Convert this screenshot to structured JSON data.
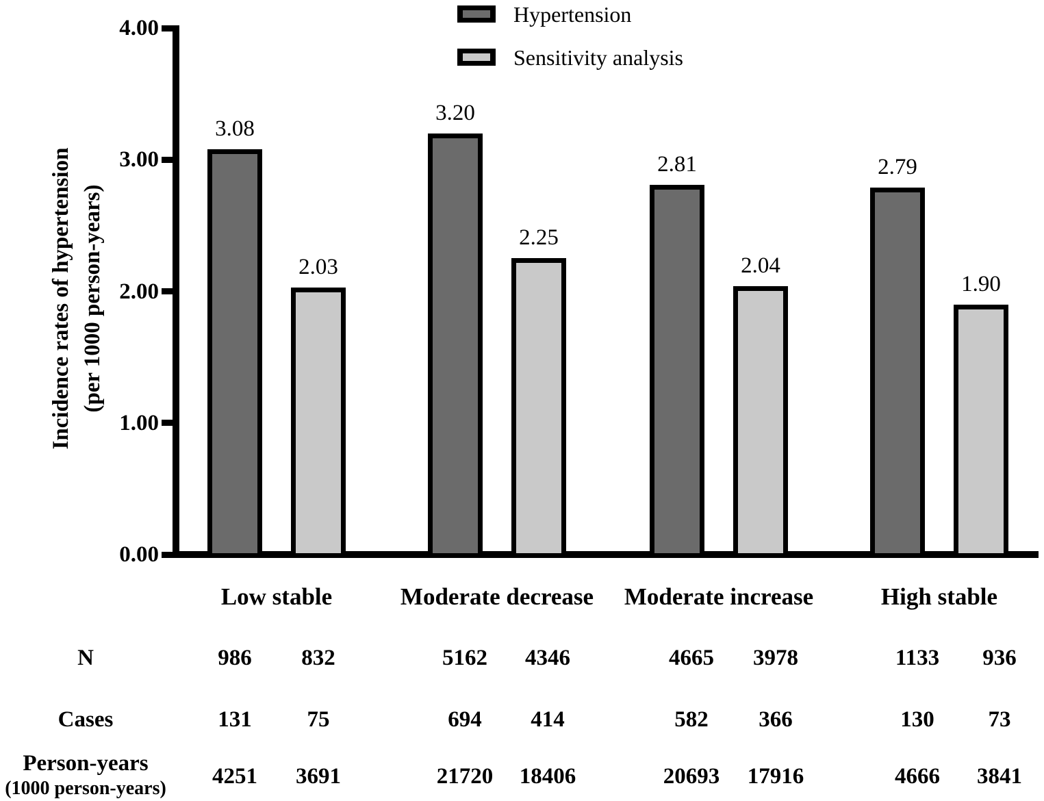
{
  "chart_data": {
    "type": "bar",
    "title": "",
    "ylabel_lines": [
      "Incidence rates of hypertension",
      "(per 1000 person-years)"
    ],
    "xlabel": "",
    "ylim": [
      0,
      4
    ],
    "y_ticks": [
      "0.00",
      "1.00",
      "2.00",
      "3.00",
      "4.00"
    ],
    "grid": "off",
    "legend_position": "top-center",
    "categories": [
      "Low stable",
      "Moderate decrease",
      "Moderate increase",
      "High stable"
    ],
    "series": [
      {
        "name": "Hypertension",
        "color": "#6b6b6b",
        "values": [
          3.08,
          3.2,
          2.81,
          2.79
        ],
        "labels": [
          "3.08",
          "3.20",
          "2.81",
          "2.79"
        ]
      },
      {
        "name": "Sensitivity analysis",
        "color": "#c9c9c9",
        "values": [
          2.03,
          2.25,
          2.04,
          1.9
        ],
        "labels": [
          "2.03",
          "2.25",
          "2.04",
          "1.90"
        ]
      }
    ],
    "table": {
      "rows": [
        {
          "label": "N",
          "sublabel": "",
          "values": [
            "986",
            "832",
            "5162",
            "4346",
            "4665",
            "3978",
            "1133",
            "936"
          ]
        },
        {
          "label": "Cases",
          "sublabel": "",
          "values": [
            "131",
            "75",
            "694",
            "414",
            "582",
            "366",
            "130",
            "73"
          ]
        },
        {
          "label": "Person-years",
          "sublabel": "(1000 person-years)",
          "values": [
            "4251",
            "3691",
            "21720",
            "18406",
            "20693",
            "17916",
            "4666",
            "3841"
          ]
        }
      ]
    },
    "colors": {
      "axis": "#000000",
      "text": "#000000",
      "background": "#ffffff"
    }
  }
}
